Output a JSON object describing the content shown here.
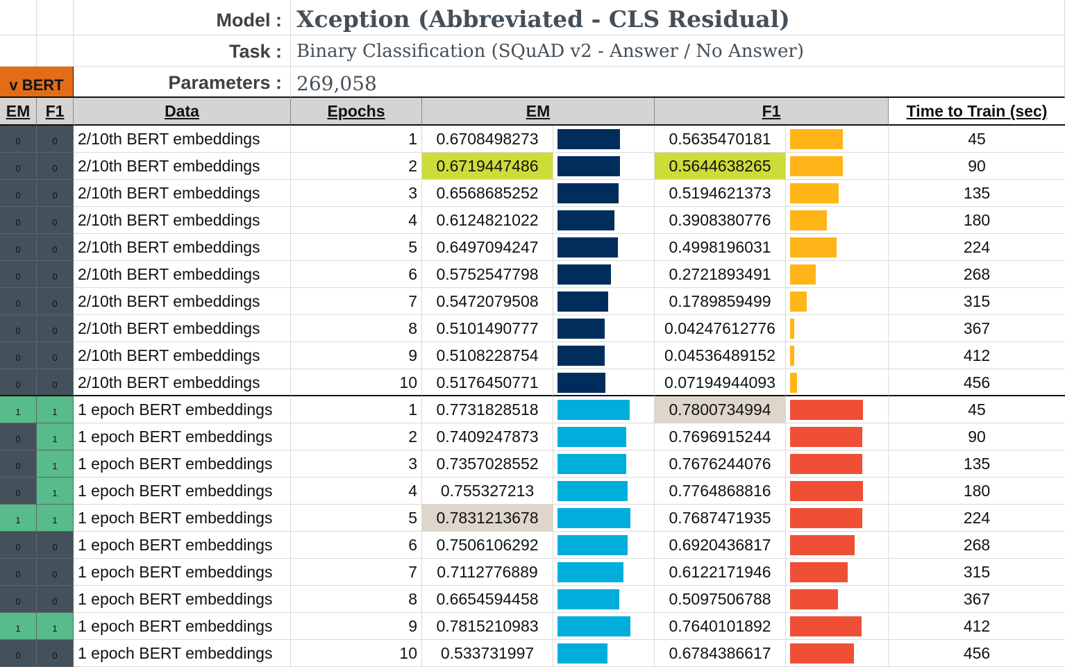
{
  "header": {
    "model_label": "Model :",
    "model_value": "Xception (Abbreviated - CLS Residual)",
    "task_label": "Task :",
    "task_value": "Binary Classification (SQuAD v2 - Answer / No Answer)",
    "params_label": "Parameters :",
    "params_value": "269,058",
    "vbert_label": "v BERT"
  },
  "columns": {
    "em_flag": "EM",
    "f1_flag": "F1",
    "data": "Data",
    "epochs": "Epochs",
    "em": "EM",
    "f1": "F1",
    "time": "Time to Train (sec)"
  },
  "colors": {
    "flag_dark": "#44505a",
    "flag_green": "#57bb8a",
    "vbert_orange": "#e36c17",
    "em_bar_group1": "#002d5c",
    "em_bar_group2": "#00aedb",
    "f1_bar_group1": "#ffb517",
    "f1_bar_group2": "#ef4f35",
    "highlight_lime": "#cddc39",
    "highlight_tan": "#ded6cb"
  },
  "rows": [
    {
      "em_flag": "0",
      "f1_flag": "0",
      "data": "2/10th BERT embeddings",
      "epochs": "1",
      "em": "0.6708498273",
      "f1": "0.5635470181",
      "time": "45",
      "group": 1,
      "em_hl": "",
      "f1_hl": ""
    },
    {
      "em_flag": "0",
      "f1_flag": "0",
      "data": "2/10th BERT embeddings",
      "epochs": "2",
      "em": "0.6719447486",
      "f1": "0.5644638265",
      "time": "90",
      "group": 1,
      "em_hl": "lime",
      "f1_hl": "lime"
    },
    {
      "em_flag": "0",
      "f1_flag": "0",
      "data": "2/10th BERT embeddings",
      "epochs": "3",
      "em": "0.6568685252",
      "f1": "0.5194621373",
      "time": "135",
      "group": 1,
      "em_hl": "",
      "f1_hl": ""
    },
    {
      "em_flag": "0",
      "f1_flag": "0",
      "data": "2/10th BERT embeddings",
      "epochs": "4",
      "em": "0.6124821022",
      "f1": "0.3908380776",
      "time": "180",
      "group": 1,
      "em_hl": "",
      "f1_hl": ""
    },
    {
      "em_flag": "0",
      "f1_flag": "0",
      "data": "2/10th BERT embeddings",
      "epochs": "5",
      "em": "0.6497094247",
      "f1": "0.4998196031",
      "time": "224",
      "group": 1,
      "em_hl": "",
      "f1_hl": ""
    },
    {
      "em_flag": "0",
      "f1_flag": "0",
      "data": "2/10th BERT embeddings",
      "epochs": "6",
      "em": "0.5752547798",
      "f1": "0.2721893491",
      "time": "268",
      "group": 1,
      "em_hl": "",
      "f1_hl": ""
    },
    {
      "em_flag": "0",
      "f1_flag": "0",
      "data": "2/10th BERT embeddings",
      "epochs": "7",
      "em": "0.5472079508",
      "f1": "0.1789859499",
      "time": "315",
      "group": 1,
      "em_hl": "",
      "f1_hl": ""
    },
    {
      "em_flag": "0",
      "f1_flag": "0",
      "data": "2/10th BERT embeddings",
      "epochs": "8",
      "em": "0.5101490777",
      "f1": "0.04247612776",
      "time": "367",
      "group": 1,
      "em_hl": "",
      "f1_hl": ""
    },
    {
      "em_flag": "0",
      "f1_flag": "0",
      "data": "2/10th BERT embeddings",
      "epochs": "9",
      "em": "0.5108228754",
      "f1": "0.04536489152",
      "time": "412",
      "group": 1,
      "em_hl": "",
      "f1_hl": ""
    },
    {
      "em_flag": "0",
      "f1_flag": "0",
      "data": "2/10th BERT embeddings",
      "epochs": "10",
      "em": "0.5176450771",
      "f1": "0.07194944093",
      "time": "456",
      "group": 1,
      "em_hl": "",
      "f1_hl": ""
    },
    {
      "em_flag": "1",
      "f1_flag": "1",
      "data": "1 epoch BERT embeddings",
      "epochs": "1",
      "em": "0.7731828518",
      "f1": "0.7800734994",
      "time": "45",
      "group": 2,
      "em_hl": "",
      "f1_hl": "tan"
    },
    {
      "em_flag": "0",
      "f1_flag": "1",
      "data": "1 epoch BERT embeddings",
      "epochs": "2",
      "em": "0.7409247873",
      "f1": "0.7696915244",
      "time": "90",
      "group": 2,
      "em_hl": "",
      "f1_hl": ""
    },
    {
      "em_flag": "0",
      "f1_flag": "1",
      "data": "1 epoch BERT embeddings",
      "epochs": "3",
      "em": "0.7357028552",
      "f1": "0.7676244076",
      "time": "135",
      "group": 2,
      "em_hl": "",
      "f1_hl": ""
    },
    {
      "em_flag": "0",
      "f1_flag": "1",
      "data": "1 epoch BERT embeddings",
      "epochs": "4",
      "em": "0.755327213",
      "f1": "0.7764868816",
      "time": "180",
      "group": 2,
      "em_hl": "",
      "f1_hl": ""
    },
    {
      "em_flag": "1",
      "f1_flag": "1",
      "data": "1 epoch BERT embeddings",
      "epochs": "5",
      "em": "0.7831213678",
      "f1": "0.7687471935",
      "time": "224",
      "group": 2,
      "em_hl": "tan",
      "f1_hl": ""
    },
    {
      "em_flag": "0",
      "f1_flag": "0",
      "data": "1 epoch BERT embeddings",
      "epochs": "6",
      "em": "0.7506106292",
      "f1": "0.6920436817",
      "time": "268",
      "group": 2,
      "em_hl": "",
      "f1_hl": ""
    },
    {
      "em_flag": "0",
      "f1_flag": "0",
      "data": "1 epoch BERT embeddings",
      "epochs": "7",
      "em": "0.7112776889",
      "f1": "0.6122171946",
      "time": "315",
      "group": 2,
      "em_hl": "",
      "f1_hl": ""
    },
    {
      "em_flag": "0",
      "f1_flag": "0",
      "data": "1 epoch BERT embeddings",
      "epochs": "8",
      "em": "0.6654594458",
      "f1": "0.5097506788",
      "time": "367",
      "group": 2,
      "em_hl": "",
      "f1_hl": ""
    },
    {
      "em_flag": "1",
      "f1_flag": "1",
      "data": "1 epoch BERT embeddings",
      "epochs": "9",
      "em": "0.7815210983",
      "f1": "0.7640101892",
      "time": "412",
      "group": 2,
      "em_hl": "",
      "f1_hl": ""
    },
    {
      "em_flag": "0",
      "f1_flag": "0",
      "data": "1 epoch BERT embeddings",
      "epochs": "10",
      "em": "0.533731997",
      "f1": "0.6784386617",
      "time": "456",
      "group": 2,
      "em_hl": "",
      "f1_hl": ""
    }
  ]
}
